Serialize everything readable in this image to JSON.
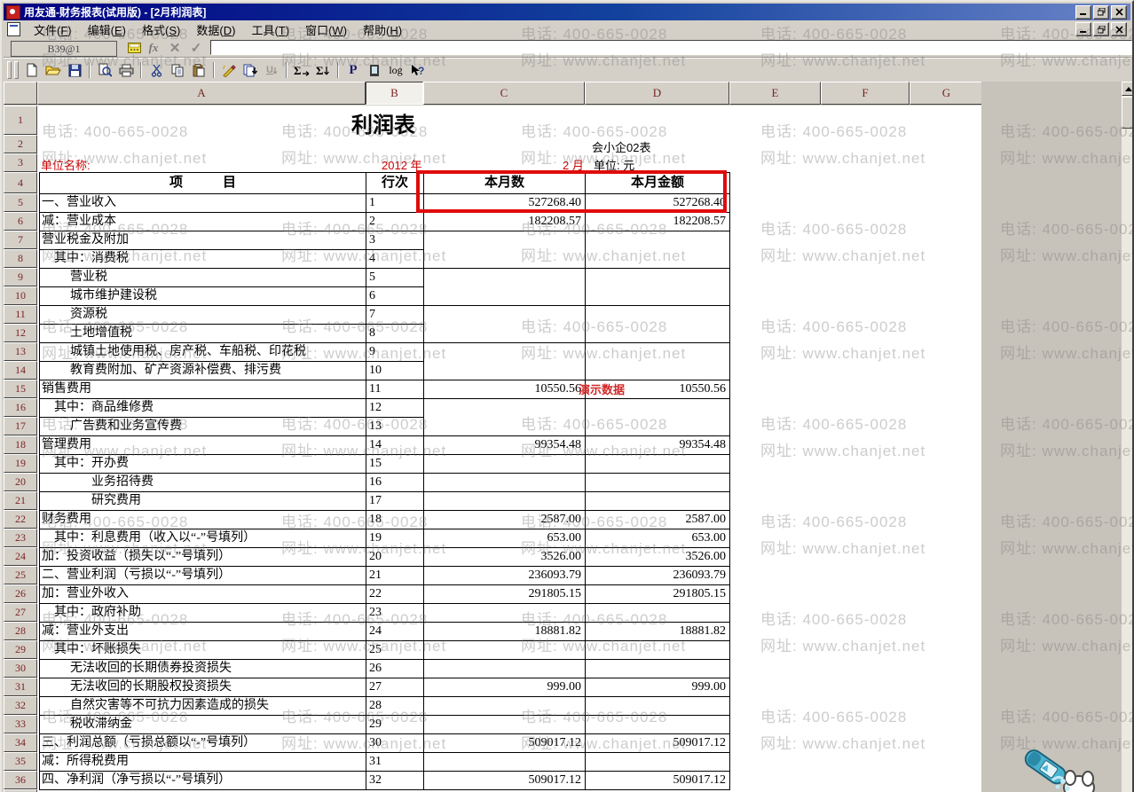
{
  "window": {
    "title": "用友通-财务报表(试用版) - [2月利润表]",
    "app_controls": [
      "minimize",
      "restore",
      "close"
    ],
    "doc_controls": [
      "minimize",
      "restore",
      "close"
    ]
  },
  "menu": {
    "items": [
      {
        "text": "文件",
        "key": "F"
      },
      {
        "text": "编辑",
        "key": "E"
      },
      {
        "text": "格式",
        "key": "S"
      },
      {
        "text": "数据",
        "key": "D"
      },
      {
        "text": "工具",
        "key": "T"
      },
      {
        "text": "窗口",
        "key": "W"
      },
      {
        "text": "帮助",
        "key": "H"
      }
    ]
  },
  "formula_bar": {
    "cell_ref": "B39@1",
    "input_value": "",
    "icons": [
      "keypad-icon",
      "fx-icon",
      "cancel-icon",
      "confirm-icon"
    ]
  },
  "toolbar": {
    "groups": [
      [
        "new",
        "open",
        "save"
      ],
      [
        "print-preview",
        "print"
      ],
      [
        "cut",
        "copy",
        "paste"
      ],
      [
        "format-pen",
        "page-recalc",
        "underline-disabled"
      ],
      [
        "sum-row",
        "sum-column"
      ],
      [
        "format-p",
        "report-view",
        "log",
        "help"
      ]
    ]
  },
  "sheet": {
    "columns": [
      "A",
      "B",
      "C",
      "D",
      "E",
      "F",
      "G"
    ],
    "selected_column": "B",
    "visible_row_count": 36,
    "report": {
      "title": "利润表",
      "doc_no": "会小企02表",
      "unit_name_label": "单位名称:",
      "year": "2012 年",
      "month": "2 月",
      "unit": "单位: 元",
      "headers": {
        "item": "项　　　目",
        "line": "行次",
        "month_count": "本月数",
        "month_amount": "本月金额"
      },
      "rows": [
        {
          "label": "一、营业收入",
          "indent": 0,
          "line": "1",
          "c": "527268.40",
          "d": "527268.40",
          "merge_below": false
        },
        {
          "label": "减：营业成本",
          "indent": 0,
          "line": "2",
          "c": "182208.57",
          "d": "182208.57",
          "merge_below": false
        },
        {
          "label": "营业税金及附加",
          "indent": 0,
          "line": "3",
          "c": "",
          "d": "",
          "merge_below": true
        },
        {
          "label": "其中：消费税",
          "indent": 1,
          "line": "4",
          "c": "",
          "d": "",
          "merge_below": false
        },
        {
          "label": "营业税",
          "indent": 2,
          "line": "5",
          "c": "",
          "d": "",
          "merge_below": true
        },
        {
          "label": "城市维护建设税",
          "indent": 2,
          "line": "6",
          "c": "",
          "d": "",
          "merge_below": false
        },
        {
          "label": "资源税",
          "indent": 2,
          "line": "7",
          "c": "",
          "d": "",
          "merge_below": true
        },
        {
          "label": "土地增值税",
          "indent": 2,
          "line": "8",
          "c": "",
          "d": "",
          "merge_below": false
        },
        {
          "label": "城镇土地使用税、房产税、车船税、印花税",
          "indent": 2,
          "line": "9",
          "c": "",
          "d": "",
          "merge_below": true
        },
        {
          "label": "教育费附加、矿产资源补偿费、排污费",
          "indent": 2,
          "line": "10",
          "c": "",
          "d": "",
          "merge_below": false
        },
        {
          "label": "销售费用",
          "indent": 0,
          "line": "11",
          "c": "10550.56",
          "d": "10550.56",
          "merge_below": false
        },
        {
          "label": "其中：商品维修费",
          "indent": 1,
          "line": "12",
          "c": "",
          "d": "",
          "merge_below": true
        },
        {
          "label": "广告费和业务宣传费",
          "indent": 2,
          "line": "13",
          "c": "",
          "d": "",
          "merge_below": false
        },
        {
          "label": "管理费用",
          "indent": 0,
          "line": "14",
          "c": "99354.48",
          "d": "99354.48",
          "merge_below": false
        },
        {
          "label": "其中：开办费",
          "indent": 1,
          "line": "15",
          "c": "",
          "d": "",
          "merge_below": false
        },
        {
          "label": "业务招待费",
          "indent": 3,
          "line": "16",
          "c": "",
          "d": "",
          "merge_below": false
        },
        {
          "label": "研究费用",
          "indent": 3,
          "line": "17",
          "c": "",
          "d": "",
          "merge_below": false
        },
        {
          "label": "财务费用",
          "indent": 0,
          "line": "18",
          "c": "2587.00",
          "d": "2587.00",
          "merge_below": false
        },
        {
          "label": "其中：利息费用（收入以“-”号填列）",
          "indent": 1,
          "line": "19",
          "c": "653.00",
          "d": "653.00",
          "merge_below": false
        },
        {
          "label": "加：投资收益（损失以“-”号填列）",
          "indent": 0,
          "line": "20",
          "c": "3526.00",
          "d": "3526.00",
          "merge_below": false
        },
        {
          "label": "二、营业利润（亏损以“-”号填列）",
          "indent": 0,
          "line": "21",
          "c": "236093.79",
          "d": "236093.79",
          "merge_below": false
        },
        {
          "label": "加：营业外收入",
          "indent": 0,
          "line": "22",
          "c": "291805.15",
          "d": "291805.15",
          "merge_below": false
        },
        {
          "label": "其中：政府补助",
          "indent": 1,
          "line": "23",
          "c": "",
          "d": "",
          "merge_below": false
        },
        {
          "label": "减：营业外支出",
          "indent": 0,
          "line": "24",
          "c": "18881.82",
          "d": "18881.82",
          "merge_below": false
        },
        {
          "label": "其中：坏账损失",
          "indent": 1,
          "line": "25",
          "c": "",
          "d": "",
          "merge_below": false
        },
        {
          "label": "无法收回的长期债券投资损失",
          "indent": 2,
          "line": "26",
          "c": "",
          "d": "",
          "merge_below": false
        },
        {
          "label": "无法收回的长期股权投资损失",
          "indent": 2,
          "line": "27",
          "c": "999.00",
          "d": "999.00",
          "merge_below": false
        },
        {
          "label": "自然灾害等不可抗力因素造成的损失",
          "indent": 2,
          "line": "28",
          "c": "",
          "d": "",
          "merge_below": false
        },
        {
          "label": "税收滞纳金",
          "indent": 2,
          "line": "29",
          "c": "",
          "d": "",
          "merge_below": false
        },
        {
          "label": "三、利润总额（亏损总额以“-”号填列）",
          "indent": 0,
          "line": "30",
          "c": "509017.12",
          "d": "509017.12",
          "merge_below": false
        },
        {
          "label": "减：所得税费用",
          "indent": 0,
          "line": "31",
          "c": "",
          "d": "",
          "merge_below": false
        },
        {
          "label": "四、净利润（净亏损以“-”号填列）",
          "indent": 0,
          "line": "32",
          "c": "509017.12",
          "d": "509017.12",
          "merge_below": false
        }
      ]
    },
    "demo_badge": "演示数据"
  },
  "watermark": {
    "phone": "电话: 400-665-0028",
    "site": "网址: www.chanjet.net"
  },
  "colors": {
    "titlebar_navy": "#000082",
    "ui_gray": "#d4d0c8",
    "header_maroon": "#7c2222",
    "form_red": "#cc0000",
    "highlight_red": "#e00b0b",
    "demo_red": "#d02828"
  }
}
